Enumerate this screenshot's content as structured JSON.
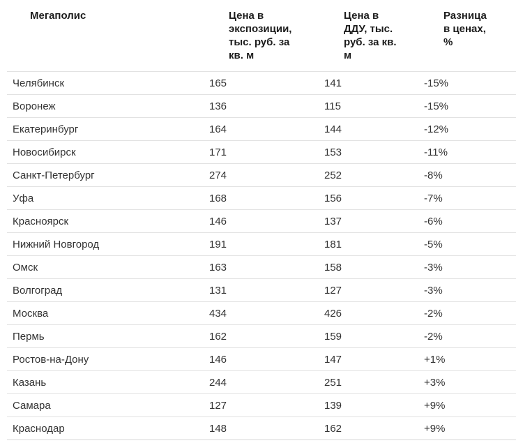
{
  "chart_data": {
    "type": "table",
    "columns": [
      "Мегаполис",
      "Цена в экспозиции, тыс. руб. за кв. м",
      "Цена в ДДУ, тыс. руб. за кв. м",
      "Разница в ценах, %"
    ],
    "rows": [
      [
        "Челябинск",
        165,
        141,
        "-15%"
      ],
      [
        "Воронеж",
        136,
        115,
        "-15%"
      ],
      [
        "Екатеринбург",
        164,
        144,
        "-12%"
      ],
      [
        "Новосибирск",
        171,
        153,
        "-11%"
      ],
      [
        "Санкт-Петербург",
        274,
        252,
        "-8%"
      ],
      [
        "Уфа",
        168,
        156,
        "-7%"
      ],
      [
        "Красноярск",
        146,
        137,
        "-6%"
      ],
      [
        "Нижний Новгород",
        191,
        181,
        "-5%"
      ],
      [
        "Омск",
        163,
        158,
        "-3%"
      ],
      [
        "Волгоград",
        131,
        127,
        "-3%"
      ],
      [
        "Москва",
        434,
        426,
        "-2%"
      ],
      [
        "Пермь",
        162,
        159,
        "-2%"
      ],
      [
        "Ростов-на-Дону",
        146,
        147,
        "+1%"
      ],
      [
        "Казань",
        244,
        251,
        "+3%"
      ],
      [
        "Самара",
        127,
        139,
        "+9%"
      ],
      [
        "Краснодар",
        148,
        162,
        "+9%"
      ]
    ],
    "title": "",
    "layout_hints": {
      "grid": "horizontal-rules-only",
      "header_position": "top",
      "value_units": "тыс. руб. за кв. м",
      "separator_color": "#e2e2e2",
      "text_color": "#333333",
      "header_text_color": "#1c1c1c"
    }
  }
}
